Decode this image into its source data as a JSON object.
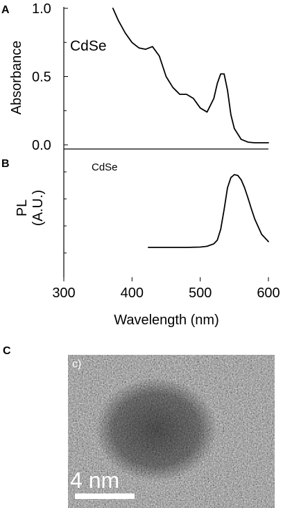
{
  "chart_data": [
    {
      "panel": "A",
      "type": "line",
      "title": "",
      "xlabel": "",
      "ylabel": "Absorbance",
      "xlim": [
        300,
        600
      ],
      "ylim": [
        0.0,
        1.0
      ],
      "yticks": [
        "0.0",
        "0.5",
        "1.0"
      ],
      "grid": false,
      "series": [
        {
          "name": "CdSe",
          "x": [
            372,
            380,
            390,
            400,
            410,
            420,
            430,
            440,
            450,
            460,
            470,
            480,
            490,
            500,
            510,
            520,
            525,
            530,
            535,
            540,
            545,
            550,
            560,
            570,
            580,
            590,
            600
          ],
          "y": [
            1.0,
            0.91,
            0.82,
            0.75,
            0.71,
            0.7,
            0.72,
            0.65,
            0.5,
            0.42,
            0.37,
            0.37,
            0.34,
            0.27,
            0.24,
            0.34,
            0.45,
            0.52,
            0.52,
            0.4,
            0.22,
            0.12,
            0.04,
            0.02,
            0.015,
            0.015,
            0.015
          ]
        }
      ]
    },
    {
      "panel": "B",
      "type": "line",
      "title": "",
      "xlabel": "Wavelength (nm)",
      "ylabel": "PL\n(A.U.)",
      "xlim": [
        300,
        600
      ],
      "xticks": [
        "300",
        "400",
        "500",
        "600"
      ],
      "ylim": [
        0.0,
        1.0
      ],
      "grid": false,
      "series": [
        {
          "name": "CdSe",
          "x": [
            424,
            440,
            460,
            480,
            500,
            510,
            520,
            525,
            530,
            535,
            540,
            545,
            550,
            555,
            560,
            565,
            570,
            575,
            580,
            590,
            600
          ],
          "y": [
            0.0,
            0.0,
            0.0,
            0.0,
            0.005,
            0.015,
            0.05,
            0.1,
            0.25,
            0.52,
            0.82,
            0.96,
            1.0,
            0.99,
            0.93,
            0.82,
            0.68,
            0.53,
            0.39,
            0.18,
            0.08
          ]
        }
      ]
    }
  ],
  "panel_c": {
    "letter": "C",
    "corner_label": "c)",
    "scale_bar_label": "4 nm"
  },
  "panels": {
    "a_letter": "A",
    "b_letter": "B"
  },
  "colors": {
    "line": "#000000",
    "tem_dark": "#2a2a2a",
    "tem_light": "#d8d8d8"
  }
}
